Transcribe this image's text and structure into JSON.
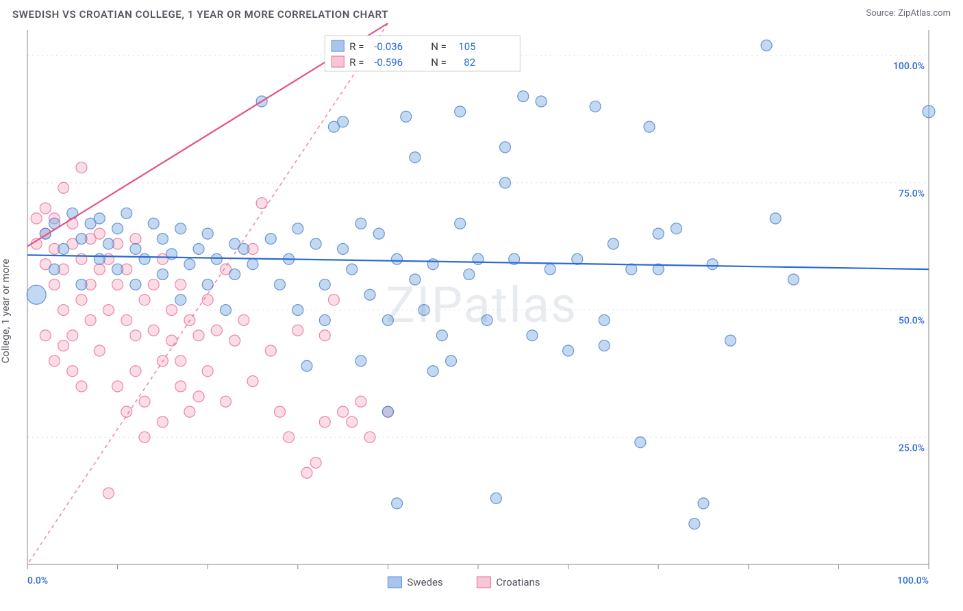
{
  "title": "SWEDISH VS CROATIAN COLLEGE, 1 YEAR OR MORE CORRELATION CHART",
  "source_label": "Source: ",
  "source_name": "ZipAtlas.com",
  "watermark": "ZIPatlas",
  "y_axis_label": "College, 1 year or more",
  "chart": {
    "type": "scatter",
    "xlim": [
      0,
      100
    ],
    "ylim": [
      0,
      105
    ],
    "x_tick_label_min": "0.0%",
    "x_tick_label_max": "100.0%",
    "x_ticks": [
      0,
      10,
      20,
      30,
      40,
      50,
      60,
      70,
      80,
      90,
      100
    ],
    "y_ticks": [
      25,
      50,
      75,
      100
    ],
    "y_tick_labels": [
      "25.0%",
      "50.0%",
      "75.0%",
      "100.0%"
    ],
    "grid_color": "#dcdcdc",
    "background_color": "#ffffff",
    "series": [
      {
        "name": "Swedes",
        "color_fill": "#7aa8e0",
        "color_stroke": "#4a80c8",
        "marker_radius": 8,
        "R": "-0.036",
        "N": "105",
        "trend": {
          "y_at_x0": 60.8,
          "y_at_x100": 58.0,
          "color": "#2b6bd4"
        },
        "points": [
          [
            1,
            53,
            14
          ],
          [
            2,
            65,
            8
          ],
          [
            3,
            58,
            8
          ],
          [
            3,
            67,
            8
          ],
          [
            4,
            62,
            8
          ],
          [
            5,
            69,
            8
          ],
          [
            6,
            55,
            8
          ],
          [
            6,
            64,
            8
          ],
          [
            7,
            67,
            8
          ],
          [
            8,
            60,
            8
          ],
          [
            8,
            68,
            8
          ],
          [
            9,
            63,
            8
          ],
          [
            10,
            66,
            8
          ],
          [
            10,
            58,
            8
          ],
          [
            11,
            69,
            8
          ],
          [
            12,
            62,
            8
          ],
          [
            12,
            55,
            8
          ],
          [
            13,
            60,
            8
          ],
          [
            14,
            67,
            8
          ],
          [
            15,
            57,
            8
          ],
          [
            15,
            64,
            8
          ],
          [
            16,
            61,
            8
          ],
          [
            17,
            52,
            8
          ],
          [
            17,
            66,
            8
          ],
          [
            18,
            59,
            8
          ],
          [
            19,
            62,
            8
          ],
          [
            20,
            55,
            8
          ],
          [
            20,
            65,
            8
          ],
          [
            21,
            60,
            8
          ],
          [
            22,
            50,
            8
          ],
          [
            23,
            63,
            8
          ],
          [
            23,
            57,
            8
          ],
          [
            24,
            62,
            8
          ],
          [
            25,
            59,
            8
          ],
          [
            26,
            91,
            8
          ],
          [
            27,
            64,
            8
          ],
          [
            28,
            55,
            8
          ],
          [
            29,
            60,
            8
          ],
          [
            30,
            50,
            8
          ],
          [
            30,
            66,
            8
          ],
          [
            31,
            39,
            8
          ],
          [
            32,
            63,
            8
          ],
          [
            33,
            55,
            8
          ],
          [
            33,
            48,
            8
          ],
          [
            34,
            86,
            8
          ],
          [
            35,
            62,
            8
          ],
          [
            35,
            87,
            8
          ],
          [
            36,
            58,
            8
          ],
          [
            37,
            40,
            8
          ],
          [
            37,
            67,
            8
          ],
          [
            38,
            53,
            8
          ],
          [
            39,
            65,
            8
          ],
          [
            40,
            48,
            8
          ],
          [
            40,
            30,
            8
          ],
          [
            41,
            12,
            8
          ],
          [
            41,
            60,
            8
          ],
          [
            42,
            88,
            8
          ],
          [
            43,
            56,
            8
          ],
          [
            43,
            80,
            8
          ],
          [
            44,
            50,
            8
          ],
          [
            45,
            38,
            8
          ],
          [
            45,
            59,
            8
          ],
          [
            46,
            45,
            8
          ],
          [
            47,
            40,
            8
          ],
          [
            48,
            67,
            8
          ],
          [
            48,
            89,
            8
          ],
          [
            49,
            57,
            8
          ],
          [
            50,
            60,
            8
          ],
          [
            51,
            48,
            8
          ],
          [
            52,
            13,
            8
          ],
          [
            53,
            75,
            8
          ],
          [
            53,
            82,
            8
          ],
          [
            54,
            60,
            8
          ],
          [
            55,
            92,
            8
          ],
          [
            56,
            45,
            8
          ],
          [
            57,
            91,
            8
          ],
          [
            58,
            58,
            8
          ],
          [
            60,
            42,
            8
          ],
          [
            61,
            60,
            8
          ],
          [
            63,
            90,
            8
          ],
          [
            64,
            43,
            8
          ],
          [
            64,
            48,
            8
          ],
          [
            65,
            63,
            8
          ],
          [
            67,
            58,
            8
          ],
          [
            68,
            24,
            8
          ],
          [
            69,
            86,
            8
          ],
          [
            70,
            65,
            8
          ],
          [
            70,
            58,
            8
          ],
          [
            72,
            66,
            8
          ],
          [
            74,
            8,
            8
          ],
          [
            75,
            12,
            8
          ],
          [
            76,
            59,
            8
          ],
          [
            78,
            44,
            8
          ],
          [
            82,
            102,
            8
          ],
          [
            83,
            68,
            8
          ],
          [
            85,
            56,
            8
          ],
          [
            100,
            89,
            9
          ]
        ]
      },
      {
        "name": "Croatians",
        "color_fill": "#f7b4c8",
        "color_stroke": "#e86a94",
        "marker_radius": 8,
        "R": "-0.596",
        "N": "82",
        "trend": {
          "y_at_x0": 62.5,
          "y_at_x53": 0,
          "color": "#e84f85"
        },
        "points": [
          [
            1,
            68,
            8
          ],
          [
            1,
            63,
            8
          ],
          [
            2,
            59,
            8
          ],
          [
            2,
            65,
            8
          ],
          [
            2,
            70,
            8
          ],
          [
            3,
            55,
            8
          ],
          [
            3,
            62,
            8
          ],
          [
            3,
            68,
            8
          ],
          [
            4,
            74,
            8
          ],
          [
            4,
            58,
            8
          ],
          [
            4,
            50,
            8
          ],
          [
            5,
            63,
            8
          ],
          [
            5,
            45,
            8
          ],
          [
            5,
            67,
            8
          ],
          [
            6,
            52,
            8
          ],
          [
            6,
            60,
            8
          ],
          [
            6,
            78,
            8
          ],
          [
            7,
            48,
            8
          ],
          [
            7,
            55,
            8
          ],
          [
            7,
            64,
            8
          ],
          [
            8,
            42,
            8
          ],
          [
            8,
            58,
            8
          ],
          [
            8,
            65,
            8
          ],
          [
            9,
            50,
            8
          ],
          [
            9,
            60,
            8
          ],
          [
            10,
            35,
            8
          ],
          [
            10,
            55,
            8
          ],
          [
            10,
            63,
            8
          ],
          [
            11,
            48,
            8
          ],
          [
            11,
            58,
            8
          ],
          [
            12,
            45,
            8
          ],
          [
            12,
            38,
            8
          ],
          [
            12,
            64,
            8
          ],
          [
            13,
            52,
            8
          ],
          [
            13,
            32,
            8
          ],
          [
            14,
            55,
            8
          ],
          [
            14,
            46,
            8
          ],
          [
            15,
            40,
            8
          ],
          [
            15,
            60,
            8
          ],
          [
            16,
            50,
            8
          ],
          [
            16,
            44,
            8
          ],
          [
            17,
            35,
            8
          ],
          [
            17,
            55,
            8
          ],
          [
            18,
            48,
            8
          ],
          [
            18,
            30,
            8
          ],
          [
            19,
            45,
            8
          ],
          [
            20,
            52,
            8
          ],
          [
            20,
            38,
            8
          ],
          [
            21,
            46,
            8
          ],
          [
            22,
            32,
            8
          ],
          [
            22,
            58,
            8
          ],
          [
            23,
            44,
            8
          ],
          [
            24,
            48,
            8
          ],
          [
            25,
            62,
            8
          ],
          [
            25,
            36,
            8
          ],
          [
            26,
            71,
            8
          ],
          [
            27,
            42,
            8
          ],
          [
            28,
            30,
            8
          ],
          [
            29,
            25,
            8
          ],
          [
            30,
            46,
            8
          ],
          [
            31,
            18,
            8
          ],
          [
            32,
            20,
            8
          ],
          [
            33,
            45,
            8
          ],
          [
            33,
            28,
            8
          ],
          [
            34,
            52,
            8
          ],
          [
            35,
            30,
            8
          ],
          [
            36,
            28,
            8
          ],
          [
            37,
            32,
            8
          ],
          [
            38,
            25,
            8
          ],
          [
            40,
            30,
            8
          ],
          [
            9,
            14,
            8
          ],
          [
            2,
            45,
            8
          ],
          [
            3,
            40,
            8
          ],
          [
            4,
            43,
            8
          ],
          [
            5,
            38,
            8
          ],
          [
            6,
            35,
            8
          ],
          [
            11,
            30,
            8
          ],
          [
            13,
            25,
            8
          ],
          [
            15,
            28,
            8
          ],
          [
            17,
            40,
            8
          ],
          [
            19,
            33,
            8
          ]
        ]
      }
    ],
    "legend_bottom": {
      "items": [
        {
          "label": "Swedes",
          "swatch": "blue"
        },
        {
          "label": "Croatians",
          "swatch": "pink"
        }
      ]
    },
    "legend_top": {
      "R_prefix": "R = ",
      "N_prefix": "N = "
    }
  }
}
